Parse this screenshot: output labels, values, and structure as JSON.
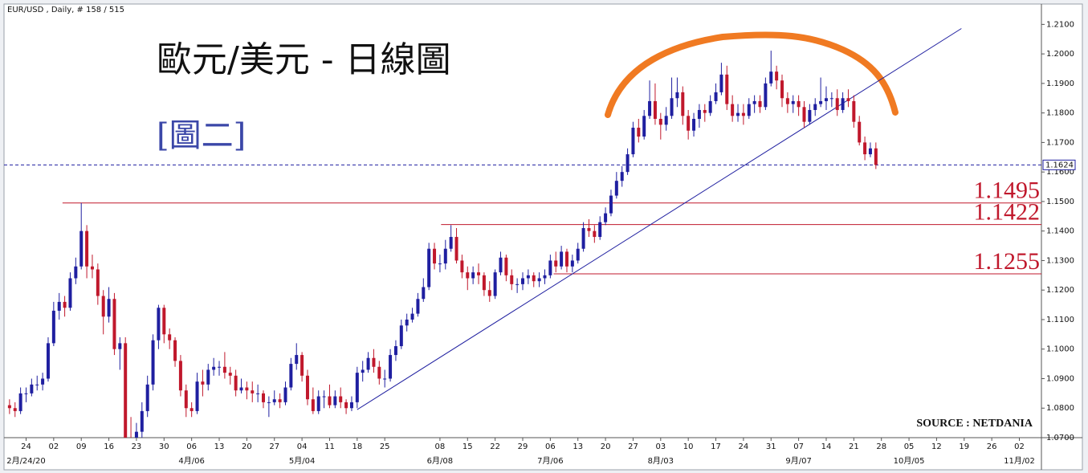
{
  "chart_data": {
    "type": "candlestick",
    "title": "歐元/美元 - 日線圖",
    "subtitle": "[圖二]",
    "header": "EUR/USD , Daily, # 158 / 515",
    "source": "SOURCE : NETDANIA",
    "up_color": "#1f1fa0",
    "down_color": "#c0182c",
    "candles": [
      [
        1.081,
        1.083,
        1.078,
        1.08
      ],
      [
        1.08,
        1.082,
        1.077,
        1.079
      ],
      [
        1.079,
        1.087,
        1.078,
        1.085
      ],
      [
        1.085,
        1.087,
        1.082,
        1.085
      ],
      [
        1.085,
        1.09,
        1.084,
        1.088
      ],
      [
        1.088,
        1.091,
        1.086,
        1.088
      ],
      [
        1.088,
        1.092,
        1.086,
        1.09
      ],
      [
        1.09,
        1.104,
        1.089,
        1.102
      ],
      [
        1.102,
        1.116,
        1.101,
        1.113
      ],
      [
        1.113,
        1.119,
        1.11,
        1.116
      ],
      [
        1.116,
        1.118,
        1.111,
        1.114
      ],
      [
        1.114,
        1.126,
        1.113,
        1.124
      ],
      [
        1.124,
        1.131,
        1.122,
        1.128
      ],
      [
        1.128,
        1.1495,
        1.127,
        1.14
      ],
      [
        1.14,
        1.142,
        1.124,
        1.128
      ],
      [
        1.128,
        1.132,
        1.124,
        1.127
      ],
      [
        1.127,
        1.129,
        1.115,
        1.118
      ],
      [
        1.118,
        1.12,
        1.105,
        1.111
      ],
      [
        1.111,
        1.121,
        1.109,
        1.117
      ],
      [
        1.117,
        1.119,
        1.098,
        1.1
      ],
      [
        1.1,
        1.104,
        1.093,
        1.102
      ],
      [
        1.102,
        1.104,
        1.0636,
        1.07
      ],
      [
        1.07,
        1.077,
        1.064,
        1.069
      ],
      [
        1.069,
        1.075,
        1.064,
        1.072
      ],
      [
        1.072,
        1.082,
        1.07,
        1.079
      ],
      [
        1.079,
        1.091,
        1.077,
        1.088
      ],
      [
        1.088,
        1.105,
        1.086,
        1.103
      ],
      [
        1.103,
        1.115,
        1.1,
        1.114
      ],
      [
        1.114,
        1.115,
        1.102,
        1.105
      ],
      [
        1.105,
        1.107,
        1.1,
        1.103
      ],
      [
        1.103,
        1.104,
        1.094,
        1.096
      ],
      [
        1.096,
        1.098,
        1.084,
        1.086
      ],
      [
        1.086,
        1.088,
        1.077,
        1.08
      ],
      [
        1.08,
        1.082,
        1.077,
        1.079
      ],
      [
        1.079,
        1.092,
        1.078,
        1.089
      ],
      [
        1.089,
        1.093,
        1.084,
        1.088
      ],
      [
        1.088,
        1.095,
        1.086,
        1.093
      ],
      [
        1.093,
        1.097,
        1.091,
        1.094
      ],
      [
        1.094,
        1.096,
        1.091,
        1.094
      ],
      [
        1.094,
        1.099,
        1.09,
        1.092
      ],
      [
        1.092,
        1.094,
        1.088,
        1.091
      ],
      [
        1.091,
        1.093,
        1.084,
        1.086
      ],
      [
        1.086,
        1.09,
        1.085,
        1.087
      ],
      [
        1.087,
        1.089,
        1.083,
        1.086
      ],
      [
        1.086,
        1.089,
        1.082,
        1.085
      ],
      [
        1.085,
        1.088,
        1.082,
        1.085
      ],
      [
        1.085,
        1.086,
        1.08,
        1.082
      ],
      [
        1.082,
        1.084,
        1.077,
        1.082
      ],
      [
        1.082,
        1.086,
        1.081,
        1.083
      ],
      [
        1.083,
        1.085,
        1.08,
        1.082
      ],
      [
        1.082,
        1.089,
        1.081,
        1.087
      ],
      [
        1.087,
        1.097,
        1.086,
        1.095
      ],
      [
        1.095,
        1.102,
        1.093,
        1.098
      ],
      [
        1.098,
        1.099,
        1.089,
        1.091
      ],
      [
        1.091,
        1.093,
        1.081,
        1.083
      ],
      [
        1.083,
        1.087,
        1.078,
        1.079
      ],
      [
        1.079,
        1.086,
        1.078,
        1.084
      ],
      [
        1.084,
        1.086,
        1.08,
        1.084
      ],
      [
        1.084,
        1.088,
        1.08,
        1.081
      ],
      [
        1.081,
        1.086,
        1.08,
        1.084
      ],
      [
        1.084,
        1.087,
        1.08,
        1.082
      ],
      [
        1.082,
        1.083,
        1.078,
        1.08
      ],
      [
        1.08,
        1.084,
        1.079,
        1.082
      ],
      [
        1.082,
        1.094,
        1.08,
        1.092
      ],
      [
        1.092,
        1.096,
        1.089,
        1.093
      ],
      [
        1.093,
        1.099,
        1.092,
        1.097
      ],
      [
        1.097,
        1.1,
        1.092,
        1.094
      ],
      [
        1.094,
        1.096,
        1.088,
        1.09
      ],
      [
        1.09,
        1.093,
        1.087,
        1.09
      ],
      [
        1.09,
        1.1,
        1.089,
        1.098
      ],
      [
        1.098,
        1.103,
        1.096,
        1.101
      ],
      [
        1.101,
        1.11,
        1.1,
        1.108
      ],
      [
        1.108,
        1.112,
        1.106,
        1.11
      ],
      [
        1.11,
        1.114,
        1.109,
        1.112
      ],
      [
        1.112,
        1.119,
        1.111,
        1.117
      ],
      [
        1.117,
        1.124,
        1.116,
        1.121
      ],
      [
        1.121,
        1.136,
        1.12,
        1.134
      ],
      [
        1.134,
        1.136,
        1.127,
        1.129
      ],
      [
        1.129,
        1.132,
        1.126,
        1.129
      ],
      [
        1.129,
        1.137,
        1.127,
        1.134
      ],
      [
        1.134,
        1.142,
        1.133,
        1.138
      ],
      [
        1.138,
        1.141,
        1.129,
        1.13
      ],
      [
        1.13,
        1.132,
        1.124,
        1.126
      ],
      [
        1.126,
        1.128,
        1.12,
        1.124
      ],
      [
        1.124,
        1.128,
        1.122,
        1.126
      ],
      [
        1.126,
        1.129,
        1.122,
        1.125
      ],
      [
        1.125,
        1.126,
        1.118,
        1.12
      ],
      [
        1.12,
        1.123,
        1.116,
        1.118
      ],
      [
        1.118,
        1.127,
        1.117,
        1.126
      ],
      [
        1.126,
        1.133,
        1.125,
        1.131
      ],
      [
        1.131,
        1.132,
        1.123,
        1.125
      ],
      [
        1.125,
        1.127,
        1.12,
        1.122
      ],
      [
        1.122,
        1.124,
        1.119,
        1.122
      ],
      [
        1.122,
        1.126,
        1.12,
        1.124
      ],
      [
        1.124,
        1.127,
        1.122,
        1.125
      ],
      [
        1.125,
        1.126,
        1.121,
        1.123
      ],
      [
        1.123,
        1.126,
        1.121,
        1.124
      ],
      [
        1.124,
        1.127,
        1.122,
        1.125
      ],
      [
        1.125,
        1.132,
        1.124,
        1.13
      ],
      [
        1.13,
        1.133,
        1.126,
        1.128
      ],
      [
        1.128,
        1.135,
        1.127,
        1.133
      ],
      [
        1.133,
        1.134,
        1.126,
        1.128
      ],
      [
        1.128,
        1.132,
        1.126,
        1.13
      ],
      [
        1.13,
        1.136,
        1.129,
        1.134
      ],
      [
        1.134,
        1.143,
        1.133,
        1.141
      ],
      [
        1.141,
        1.144,
        1.138,
        1.14
      ],
      [
        1.14,
        1.142,
        1.136,
        1.138
      ],
      [
        1.138,
        1.145,
        1.137,
        1.143
      ],
      [
        1.143,
        1.148,
        1.142,
        1.146
      ],
      [
        1.146,
        1.154,
        1.145,
        1.152
      ],
      [
        1.152,
        1.16,
        1.151,
        1.157
      ],
      [
        1.157,
        1.162,
        1.155,
        1.16
      ],
      [
        1.16,
        1.168,
        1.159,
        1.166
      ],
      [
        1.166,
        1.177,
        1.165,
        1.175
      ],
      [
        1.175,
        1.178,
        1.17,
        1.172
      ],
      [
        1.172,
        1.181,
        1.171,
        1.179
      ],
      [
        1.179,
        1.191,
        1.178,
        1.184
      ],
      [
        1.184,
        1.19,
        1.176,
        1.178
      ],
      [
        1.178,
        1.18,
        1.171,
        1.176
      ],
      [
        1.176,
        1.182,
        1.174,
        1.179
      ],
      [
        1.179,
        1.192,
        1.178,
        1.185
      ],
      [
        1.185,
        1.192,
        1.182,
        1.187
      ],
      [
        1.187,
        1.189,
        1.176,
        1.179
      ],
      [
        1.179,
        1.181,
        1.171,
        1.174
      ],
      [
        1.174,
        1.18,
        1.172,
        1.178
      ],
      [
        1.178,
        1.183,
        1.175,
        1.181
      ],
      [
        1.181,
        1.183,
        1.177,
        1.18
      ],
      [
        1.18,
        1.186,
        1.179,
        1.184
      ],
      [
        1.184,
        1.19,
        1.183,
        1.187
      ],
      [
        1.187,
        1.197,
        1.186,
        1.193
      ],
      [
        1.193,
        1.196,
        1.181,
        1.183
      ],
      [
        1.183,
        1.186,
        1.177,
        1.179
      ],
      [
        1.179,
        1.183,
        1.177,
        1.18
      ],
      [
        1.18,
        1.183,
        1.176,
        1.179
      ],
      [
        1.179,
        1.185,
        1.178,
        1.183
      ],
      [
        1.183,
        1.186,
        1.18,
        1.184
      ],
      [
        1.184,
        1.186,
        1.18,
        1.182
      ],
      [
        1.182,
        1.192,
        1.181,
        1.19
      ],
      [
        1.19,
        1.2011,
        1.189,
        1.194
      ],
      [
        1.194,
        1.196,
        1.188,
        1.191
      ],
      [
        1.191,
        1.193,
        1.182,
        1.185
      ],
      [
        1.185,
        1.187,
        1.18,
        1.183
      ],
      [
        1.183,
        1.186,
        1.18,
        1.184
      ],
      [
        1.184,
        1.186,
        1.179,
        1.182
      ],
      [
        1.182,
        1.184,
        1.175,
        1.177
      ],
      [
        1.177,
        1.183,
        1.176,
        1.181
      ],
      [
        1.181,
        1.185,
        1.179,
        1.183
      ],
      [
        1.183,
        1.192,
        1.182,
        1.184
      ],
      [
        1.184,
        1.189,
        1.181,
        1.185
      ],
      [
        1.185,
        1.187,
        1.182,
        1.185
      ],
      [
        1.185,
        1.188,
        1.179,
        1.181
      ],
      [
        1.181,
        1.187,
        1.18,
        1.185
      ],
      [
        1.185,
        1.188,
        1.182,
        1.184
      ],
      [
        1.184,
        1.186,
        1.175,
        1.177
      ],
      [
        1.177,
        1.179,
        1.169,
        1.17
      ],
      [
        1.17,
        1.172,
        1.164,
        1.166
      ],
      [
        1.166,
        1.17,
        1.165,
        1.168
      ],
      [
        1.168,
        1.17,
        1.161,
        1.1624
      ]
    ],
    "ylim": [
      1.07,
      1.2169
    ],
    "yticks": [
      {
        "value": 1.07,
        "label": "1.0700"
      },
      {
        "value": 1.08,
        "label": "1.0800"
      },
      {
        "value": 1.09,
        "label": "1.0900"
      },
      {
        "value": 1.1,
        "label": "1.1000"
      },
      {
        "value": 1.11,
        "label": "1.1100"
      },
      {
        "value": 1.12,
        "label": "1.1200"
      },
      {
        "value": 1.13,
        "label": "1.1300"
      },
      {
        "value": 1.14,
        "label": "1.1400"
      },
      {
        "value": 1.15,
        "label": "1.1500"
      },
      {
        "value": 1.16,
        "label": "1.1600"
      },
      {
        "value": 1.17,
        "label": "1.1700"
      },
      {
        "value": 1.18,
        "label": "1.1800"
      },
      {
        "value": 1.19,
        "label": "1.1900"
      },
      {
        "value": 1.2,
        "label": "1.2000"
      },
      {
        "value": 1.21,
        "label": "1.2100"
      }
    ],
    "xlim": [
      -1,
      187
    ],
    "xticks": [
      {
        "value": 3,
        "label": "24"
      },
      {
        "value": 8,
        "label": "02"
      },
      {
        "value": 13,
        "label": "09"
      },
      {
        "value": 18,
        "label": "16"
      },
      {
        "value": 23,
        "label": "23"
      },
      {
        "value": 28,
        "label": "30"
      },
      {
        "value": 33,
        "label": "06"
      },
      {
        "value": 38,
        "label": "13"
      },
      {
        "value": 43,
        "label": "20"
      },
      {
        "value": 48,
        "label": "27"
      },
      {
        "value": 53,
        "label": "04"
      },
      {
        "value": 58,
        "label": "11"
      },
      {
        "value": 63,
        "label": "18"
      },
      {
        "value": 68,
        "label": "25"
      },
      {
        "value": 78,
        "label": "08"
      },
      {
        "value": 83,
        "label": "15"
      },
      {
        "value": 88,
        "label": "22"
      },
      {
        "value": 93,
        "label": "29"
      },
      {
        "value": 98,
        "label": "06"
      },
      {
        "value": 103,
        "label": "13"
      },
      {
        "value": 108,
        "label": "20"
      },
      {
        "value": 113,
        "label": "27"
      },
      {
        "value": 118,
        "label": "03"
      },
      {
        "value": 123,
        "label": "10"
      },
      {
        "value": 128,
        "label": "17"
      },
      {
        "value": 133,
        "label": "24"
      },
      {
        "value": 138,
        "label": "31"
      },
      {
        "value": 143,
        "label": "07"
      },
      {
        "value": 148,
        "label": "14"
      },
      {
        "value": 153,
        "label": "21"
      },
      {
        "value": 158,
        "label": "28"
      },
      {
        "value": 163,
        "label": "05"
      },
      {
        "value": 168,
        "label": "12"
      },
      {
        "value": 173,
        "label": "19"
      },
      {
        "value": 178,
        "label": "26"
      },
      {
        "value": 183,
        "label": "02"
      }
    ],
    "xticks2": [
      {
        "value": 3,
        "label": "2月/24/20"
      },
      {
        "value": 33,
        "label": "4月/06"
      },
      {
        "value": 53,
        "label": "5月/04"
      },
      {
        "value": 78,
        "label": "6月/08"
      },
      {
        "value": 98,
        "label": "7月/06"
      },
      {
        "value": 118,
        "label": "8月/03"
      },
      {
        "value": 143,
        "label": "9月/07"
      },
      {
        "value": 163,
        "label": "10月/05"
      },
      {
        "value": 183,
        "label": "11月/02"
      }
    ],
    "levels": [
      {
        "value": 1.1495,
        "from": 9.6
      },
      {
        "value": 1.1422,
        "from": 78.2
      },
      {
        "value": 1.1255,
        "from": 98.6
      }
    ],
    "last_price": 1.1624,
    "trendline": {
      "x": [
        63,
        172.5
      ],
      "y": [
        1.0795,
        1.2086
      ]
    },
    "grid": false
  }
}
